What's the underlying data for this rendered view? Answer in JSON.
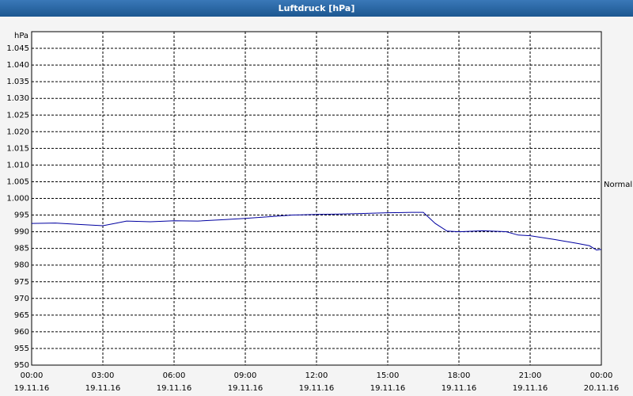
{
  "chart_data": {
    "type": "line",
    "title": "Luftdruck [hPa]",
    "y_label": "hPa",
    "annotation": "Normal",
    "x": [
      0,
      1,
      2,
      3,
      3.5,
      4,
      5,
      6,
      7,
      8,
      9,
      10,
      11,
      12,
      13,
      14,
      15,
      16,
      16.5,
      17,
      17.5,
      18,
      19,
      20,
      20.5,
      21,
      22,
      23,
      23.5,
      23.8,
      24
    ],
    "values": [
      992.5,
      992.6,
      992.2,
      991.8,
      992.5,
      993.2,
      993,
      993.3,
      993.2,
      993.6,
      994,
      994.5,
      995,
      995.2,
      995.3,
      995.5,
      995.7,
      995.8,
      995.8,
      992.5,
      990.2,
      990,
      990.3,
      990,
      989,
      988.8,
      987.7,
      986.5,
      985.8,
      984.5,
      984.7
    ],
    "color": "#0000a0",
    "xlim": [
      0,
      24
    ],
    "xticks": [
      {
        "value": 0,
        "label": [
          "00:00",
          "19.11.16"
        ]
      },
      {
        "value": 3,
        "label": [
          "03:00",
          "19.11.16"
        ]
      },
      {
        "value": 6,
        "label": [
          "06:00",
          "19.11.16"
        ]
      },
      {
        "value": 9,
        "label": [
          "09:00",
          "19.11.16"
        ]
      },
      {
        "value": 12,
        "label": [
          "12:00",
          "19.11.16"
        ]
      },
      {
        "value": 15,
        "label": [
          "15:00",
          "19.11.16"
        ]
      },
      {
        "value": 18,
        "label": [
          "18:00",
          "19.11.16"
        ]
      },
      {
        "value": 21,
        "label": [
          "21:00",
          "19.11.16"
        ]
      },
      {
        "value": 24,
        "label": [
          "00:00",
          "20.11.16"
        ]
      }
    ],
    "ylim": [
      950,
      1050
    ],
    "yticks": [
      950,
      955,
      960,
      965,
      970,
      975,
      980,
      985,
      990,
      995,
      {
        "value": 1000,
        "label": "1.000"
      },
      {
        "value": 1005,
        "label": "1.005"
      },
      {
        "value": 1010,
        "label": "1.010"
      },
      {
        "value": 1015,
        "label": "1.015"
      },
      {
        "value": 1020,
        "label": "1.020"
      },
      {
        "value": 1025,
        "label": "1.025"
      },
      {
        "value": 1030,
        "label": "1.030"
      },
      {
        "value": 1035,
        "label": "1.035"
      },
      {
        "value": 1040,
        "label": "1.040"
      },
      {
        "value": 1045,
        "label": "1.045"
      }
    ],
    "grid": true
  }
}
